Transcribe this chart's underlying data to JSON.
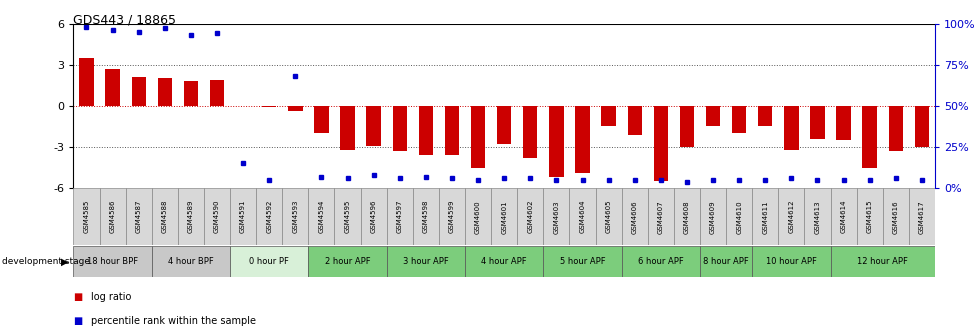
{
  "title": "GDS443 / 18865",
  "samples": [
    "GSM4585",
    "GSM4586",
    "GSM4587",
    "GSM4588",
    "GSM4589",
    "GSM4590",
    "GSM4591",
    "GSM4592",
    "GSM4593",
    "GSM4594",
    "GSM4595",
    "GSM4596",
    "GSM4597",
    "GSM4598",
    "GSM4599",
    "GSM4600",
    "GSM4601",
    "GSM4602",
    "GSM4603",
    "GSM4604",
    "GSM4605",
    "GSM4606",
    "GSM4607",
    "GSM4608",
    "GSM4609",
    "GSM4610",
    "GSM4611",
    "GSM4612",
    "GSM4613",
    "GSM4614",
    "GSM4615",
    "GSM4616",
    "GSM4617"
  ],
  "log_ratios": [
    3.5,
    2.7,
    2.1,
    2.0,
    1.8,
    1.9,
    0.0,
    -0.05,
    -0.4,
    -2.0,
    -3.2,
    -2.9,
    -3.3,
    -3.6,
    -3.6,
    -4.5,
    -2.8,
    -3.8,
    -5.2,
    -4.9,
    -1.5,
    -2.1,
    -5.5,
    -3.0,
    -1.5,
    -2.0,
    -1.5,
    -3.2,
    -2.4,
    -2.5,
    -4.5,
    -3.3,
    -3.0
  ],
  "percentile_ranks": [
    98,
    96,
    95,
    97,
    93,
    94,
    15,
    5,
    68,
    7,
    6,
    8,
    6,
    7,
    6,
    5,
    6,
    6,
    5,
    5,
    5,
    5,
    5,
    4,
    5,
    5,
    5,
    6,
    5,
    5,
    5,
    6,
    5
  ],
  "bar_color": "#cc0000",
  "dot_color": "#0000cc",
  "ylim": [
    -6,
    6
  ],
  "yticks_left": [
    -6,
    -3,
    0,
    3,
    6
  ],
  "hline_dotted_color": "#666666",
  "stage_groups": [
    {
      "label": "18 hour BPF",
      "start": 0,
      "end": 2,
      "color": "#c8c8c8"
    },
    {
      "label": "4 hour BPF",
      "start": 3,
      "end": 5,
      "color": "#c8c8c8"
    },
    {
      "label": "0 hour PF",
      "start": 6,
      "end": 8,
      "color": "#d8f0d8"
    },
    {
      "label": "2 hour APF",
      "start": 9,
      "end": 11,
      "color": "#7ccd7c"
    },
    {
      "label": "3 hour APF",
      "start": 12,
      "end": 14,
      "color": "#7ccd7c"
    },
    {
      "label": "4 hour APF",
      "start": 15,
      "end": 17,
      "color": "#7ccd7c"
    },
    {
      "label": "5 hour APF",
      "start": 18,
      "end": 20,
      "color": "#7ccd7c"
    },
    {
      "label": "6 hour APF",
      "start": 21,
      "end": 23,
      "color": "#7ccd7c"
    },
    {
      "label": "8 hour APF",
      "start": 24,
      "end": 25,
      "color": "#7ccd7c"
    },
    {
      "label": "10 hour APF",
      "start": 26,
      "end": 28,
      "color": "#7ccd7c"
    },
    {
      "label": "12 hour APF",
      "start": 29,
      "end": 32,
      "color": "#7ccd7c"
    }
  ],
  "dev_stage_label": "development stage",
  "legend_log_ratio": "log ratio",
  "legend_percentile": "percentile rank within the sample",
  "sample_cell_color": "#d8d8d8",
  "sample_cell_edge": "#888888"
}
